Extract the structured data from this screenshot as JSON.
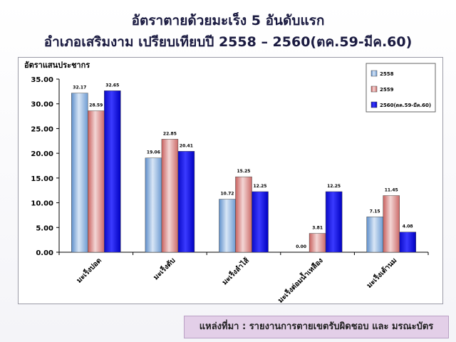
{
  "slide": {
    "title_line1": "อัตราตายด้วยมะเร็ง 5 อันดับแรก",
    "title_line2": "อำเภอเสริมงาม  เปรียบเทียบปี 2558 – 2560(ตค.59-มีค.60)",
    "source": "แหล่งที่มา :  รายงานการตายเขตรับผิดชอบ และ มรณะบัตร"
  },
  "chart_data": {
    "type": "bar",
    "title": "",
    "ylabel": "อัตราแสนประชากร",
    "xlabel": "",
    "categories": [
      "มะเร็งปอด",
      "มะเร็งตับ",
      "มะเร็งลำไส้",
      "มะเร็งต่อมน้ำเหลือง",
      "มะเร็งเต้านม"
    ],
    "series": [
      {
        "name": "2558",
        "values": [
          32.17,
          19.06,
          10.72,
          0.0,
          7.15
        ],
        "color": "#7fa8d8"
      },
      {
        "name": "2559",
        "values": [
          28.59,
          22.85,
          15.25,
          3.81,
          11.45
        ],
        "color": "#d98886"
      },
      {
        "name": "2560(ตค.59-มีค.60)",
        "values": [
          32.65,
          20.41,
          12.25,
          12.25,
          4.08
        ],
        "color": "#1f1fe0"
      }
    ],
    "ylim": [
      0,
      35
    ],
    "yticks": [
      "0.00",
      "5.00",
      "10.00",
      "15.00",
      "20.00",
      "25.00",
      "30.00",
      "35.00"
    ],
    "grid": false,
    "legend_position": "top-right"
  }
}
